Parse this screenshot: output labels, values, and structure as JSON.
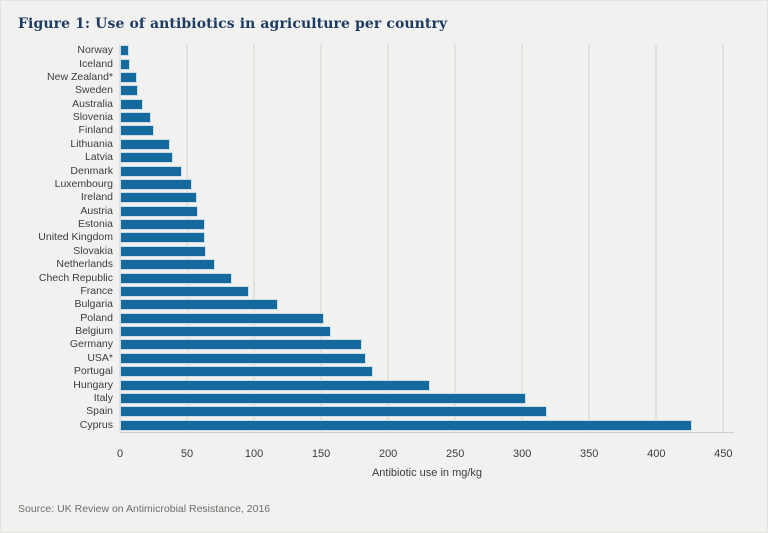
{
  "figure": {
    "title": "Figure 1: Use of antibiotics in agriculture per country",
    "source": "Source: UK Review on Antimicrobial Resistance, 2016"
  },
  "chart_data": {
    "type": "bar",
    "orientation": "horizontal",
    "title": "Figure 1: Use of antibiotics in agriculture per country",
    "xlabel": "Antibiotic use in mg/kg",
    "ylabel": "",
    "xlim": [
      0,
      450
    ],
    "x_ticks": [
      0,
      50,
      100,
      150,
      200,
      250,
      300,
      350,
      400,
      450
    ],
    "grid": true,
    "legend": null,
    "bar_color": "#15699c",
    "categories": [
      "Norway",
      "Iceland",
      "New Zealand*",
      "Sweden",
      "Australia",
      "Slovenia",
      "Finland",
      "Lithuania",
      "Latvia",
      "Denmark",
      "Luxembourg",
      "Ireland",
      "Austria",
      "Estonia",
      "United Kingdom",
      "Slovakia",
      "Netherlands",
      "Chech Republic",
      "France",
      "Bulgaria",
      "Poland",
      "Belgium",
      "Germany",
      "USA*",
      "Portugal",
      "Hungary",
      "Italy",
      "Spain",
      "Cyprus"
    ],
    "values": [
      5,
      6,
      11,
      12,
      16,
      22,
      24,
      36,
      38,
      45,
      52,
      56,
      57,
      62,
      62,
      63,
      69,
      82,
      95,
      116,
      151,
      156,
      179,
      182,
      187,
      230,
      301,
      317,
      425
    ]
  },
  "colors": {
    "background": "#f1f1ef",
    "bar": "#15699c",
    "bar_outline": "#c9dde9",
    "title_text": "#1e3b61",
    "axis_text": "#3c3c3c",
    "gridline": "#e3e3de",
    "source_text": "#6e6e68"
  }
}
